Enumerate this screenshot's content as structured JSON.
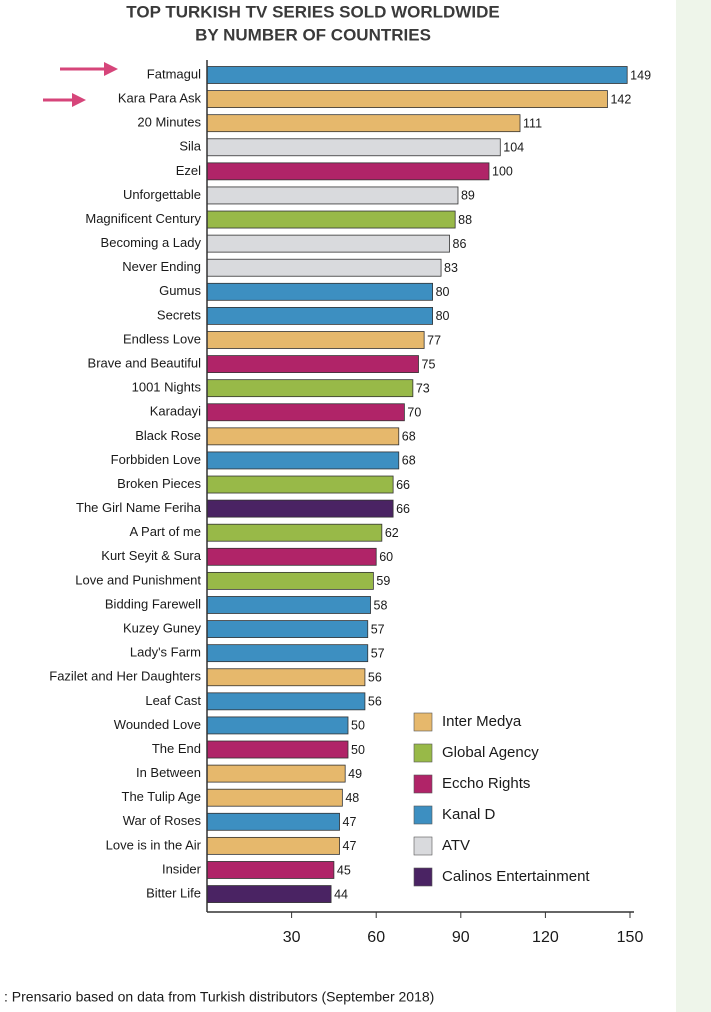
{
  "chart_data": {
    "type": "bar",
    "orientation": "horizontal",
    "title": "TOP TURKISH TV SERIES SOLD WORLDWIDE",
    "subtitle": "BY NUMBER OF COUNTRIES",
    "source": ": Prensario based on data from Turkish distributors (September 2018)",
    "categories": [
      "Fatmagul",
      "Kara Para Ask",
      "20 Minutes",
      "Sila",
      "Ezel",
      "Unforgettable",
      "Magnificent Century",
      "Becoming a Lady",
      "Never Ending",
      "Gumus",
      "Secrets",
      "Endless Love",
      "Brave and Beautiful",
      "1001 Nights",
      "Karadayi",
      "Black Rose",
      "Forbbiden Love",
      "Broken Pieces",
      "The Girl Name Feriha",
      "A Part of me",
      "Kurt Seyit & Sura",
      "Love and Punishment",
      "Bidding Farewell",
      "Kuzey Guney",
      "Lady's Farm",
      "Fazilet and Her Daughters",
      "Leaf Cast",
      "Wounded Love",
      "The End",
      "In Between",
      "The Tulip Age",
      "War of Roses",
      "Love is in the Air",
      "Insider",
      "Bitter Life"
    ],
    "series": [
      {
        "name": "Inter Medya",
        "color": "#e6b86c",
        "values": [
          null,
          142,
          111,
          null,
          null,
          null,
          null,
          null,
          null,
          null,
          null,
          77,
          null,
          null,
          null,
          68,
          null,
          null,
          null,
          null,
          null,
          null,
          null,
          null,
          null,
          56,
          null,
          null,
          null,
          49,
          48,
          null,
          47,
          null,
          null
        ]
      },
      {
        "name": "Global Agency",
        "color": "#98b948",
        "values": [
          null,
          null,
          null,
          null,
          null,
          null,
          88,
          null,
          null,
          null,
          null,
          null,
          null,
          73,
          null,
          null,
          null,
          66,
          null,
          62,
          null,
          59,
          null,
          null,
          null,
          null,
          null,
          null,
          null,
          null,
          null,
          null,
          null,
          null,
          null
        ]
      },
      {
        "name": "Eccho Rights",
        "color": "#b02468",
        "values": [
          null,
          null,
          null,
          null,
          100,
          null,
          null,
          null,
          null,
          null,
          null,
          null,
          75,
          null,
          70,
          null,
          null,
          null,
          null,
          null,
          60,
          null,
          null,
          null,
          null,
          null,
          null,
          null,
          50,
          null,
          null,
          null,
          null,
          45,
          null
        ]
      },
      {
        "name": "Kanal D",
        "color": "#3d8fc1",
        "values": [
          149,
          null,
          null,
          null,
          null,
          null,
          null,
          null,
          null,
          80,
          80,
          null,
          null,
          null,
          null,
          null,
          68,
          null,
          null,
          null,
          null,
          null,
          58,
          57,
          57,
          null,
          56,
          50,
          null,
          null,
          null,
          47,
          null,
          null,
          null
        ]
      },
      {
        "name": "ATV",
        "color": "#d9dadd",
        "values": [
          null,
          null,
          null,
          104,
          null,
          89,
          null,
          86,
          83,
          null,
          null,
          null,
          null,
          null,
          null,
          null,
          null,
          null,
          null,
          null,
          null,
          null,
          null,
          null,
          null,
          null,
          null,
          null,
          null,
          null,
          null,
          null,
          null,
          null,
          null
        ]
      },
      {
        "name": "Calinos Entertainment",
        "color": "#4a2363",
        "values": [
          null,
          null,
          null,
          null,
          null,
          null,
          null,
          null,
          null,
          null,
          null,
          null,
          null,
          null,
          null,
          null,
          null,
          null,
          66,
          null,
          null,
          null,
          null,
          null,
          null,
          null,
          null,
          null,
          null,
          null,
          null,
          null,
          null,
          null,
          44
        ]
      }
    ],
    "xlim": [
      0,
      150
    ],
    "xticks": [
      30,
      60,
      90,
      120,
      150
    ]
  }
}
